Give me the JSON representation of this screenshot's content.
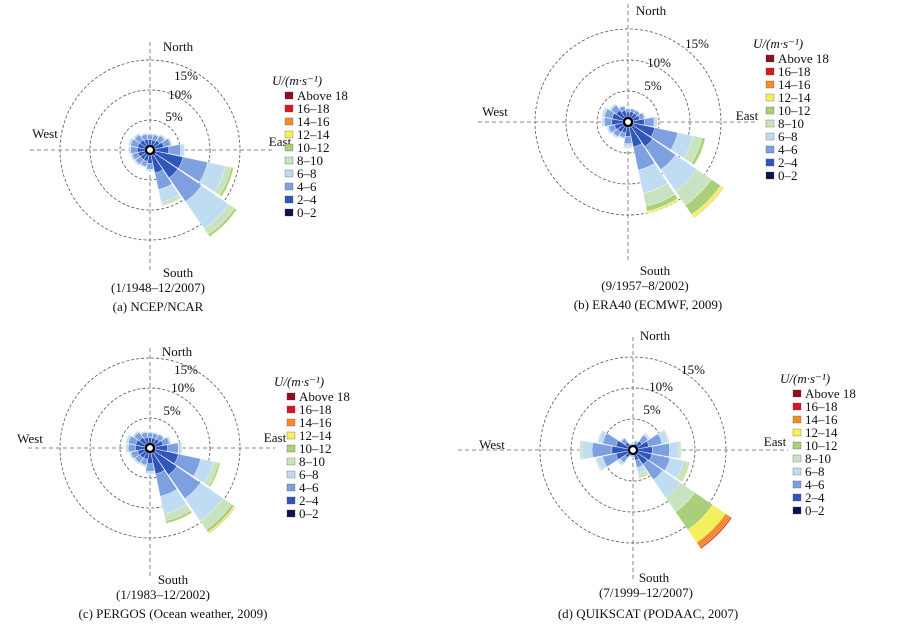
{
  "legend": {
    "title": "U/(m·s⁻¹)",
    "bins": [
      "Above 18",
      "16–18",
      "14–16",
      "12–14",
      "10–12",
      "8–10",
      "6–8",
      "4–6",
      "2–4",
      "0–2"
    ],
    "colors": [
      "#8b0f1c",
      "#d7191c",
      "#f48c2c",
      "#f4ef5c",
      "#a9cf7a",
      "#c8e3c0",
      "#bfdcf2",
      "#7fa0e0",
      "#2f56b8",
      "#0b1250"
    ]
  },
  "directions": {
    "north": "North",
    "south": "South",
    "east": "East",
    "west": "West"
  },
  "ring_labels": [
    "5%",
    "10%",
    "15%"
  ],
  "chart_data": [
    {
      "type": "wind-rose",
      "panel": "a",
      "caption": "(a) NCEP/NCAR",
      "period": "(1/1948–12/2007)",
      "ring_levels_pct": [
        5,
        10,
        15
      ],
      "sectors_deg": [
        0,
        22.5,
        45,
        67.5,
        90,
        112.5,
        135,
        157.5,
        180,
        202.5,
        225,
        247.5,
        270,
        292.5,
        315,
        337.5
      ],
      "speed_bins": [
        "0–2",
        "2–4",
        "4–6",
        "6–8",
        "8–10",
        "10–12",
        "12–14",
        "14–16",
        "16–18",
        "Above 18"
      ],
      "frequencies_pct": [
        [
          0.4,
          1.0,
          0.8,
          0.2,
          0,
          0,
          0,
          0,
          0,
          0
        ],
        [
          0.4,
          1.0,
          0.9,
          0.2,
          0,
          0,
          0,
          0,
          0,
          0
        ],
        [
          0.4,
          1.2,
          1.0,
          0.3,
          0,
          0,
          0,
          0,
          0,
          0
        ],
        [
          0.5,
          1.5,
          1.2,
          0.3,
          0,
          0,
          0,
          0,
          0,
          0
        ],
        [
          0.6,
          2.2,
          2.0,
          0.6,
          0.1,
          0,
          0,
          0,
          0,
          0
        ],
        [
          0.8,
          4.5,
          4.2,
          3.0,
          1.0,
          0.4,
          0.1,
          0,
          0,
          0
        ],
        [
          0.8,
          4.5,
          4.8,
          5.5,
          1.2,
          0.4,
          0.1,
          0,
          0,
          0
        ],
        [
          0.6,
          3.0,
          2.8,
          2.2,
          0.5,
          0.1,
          0,
          0,
          0,
          0
        ],
        [
          0.5,
          1.4,
          1.0,
          0.3,
          0,
          0,
          0,
          0,
          0,
          0
        ],
        [
          0.4,
          1.2,
          0.9,
          0.2,
          0,
          0,
          0,
          0,
          0,
          0
        ],
        [
          0.4,
          1.2,
          1.0,
          0.3,
          0,
          0,
          0,
          0,
          0,
          0
        ],
        [
          0.4,
          1.3,
          1.0,
          0.3,
          0,
          0,
          0,
          0,
          0,
          0
        ],
        [
          0.4,
          1.4,
          1.1,
          0.3,
          0,
          0,
          0,
          0,
          0,
          0
        ],
        [
          0.4,
          1.4,
          1.2,
          0.4,
          0,
          0,
          0,
          0,
          0,
          0
        ],
        [
          0.4,
          1.3,
          1.1,
          0.3,
          0,
          0,
          0,
          0,
          0,
          0
        ],
        [
          0.4,
          1.1,
          0.9,
          0.2,
          0,
          0,
          0,
          0,
          0,
          0
        ]
      ]
    },
    {
      "type": "wind-rose",
      "panel": "b",
      "caption": "(b) ERA40 (ECMWF, 2009)",
      "period": "(9/1957–8/2002)",
      "ring_levels_pct": [
        5,
        10,
        15
      ],
      "sectors_deg": [
        0,
        22.5,
        45,
        67.5,
        90,
        112.5,
        135,
        157.5,
        180,
        202.5,
        225,
        247.5,
        270,
        292.5,
        315,
        337.5
      ],
      "speed_bins": [
        "0–2",
        "2–4",
        "4–6",
        "6–8",
        "8–10",
        "10–12",
        "12–14",
        "14–16",
        "16–18",
        "Above 18"
      ],
      "frequencies_pct": [
        [
          0.4,
          0.9,
          0.5,
          0.1,
          0,
          0,
          0,
          0,
          0,
          0
        ],
        [
          0.4,
          1.0,
          0.5,
          0.1,
          0,
          0,
          0,
          0,
          0,
          0
        ],
        [
          0.4,
          1.0,
          0.6,
          0.1,
          0,
          0,
          0,
          0,
          0,
          0
        ],
        [
          0.4,
          1.2,
          0.8,
          0.2,
          0,
          0,
          0,
          0,
          0,
          0
        ],
        [
          0.5,
          1.8,
          1.6,
          0.5,
          0.1,
          0,
          0,
          0,
          0,
          0
        ],
        [
          0.6,
          3.5,
          3.8,
          2.5,
          1.5,
          0.5,
          0.1,
          0,
          0,
          0
        ],
        [
          0.7,
          3.8,
          4.5,
          4.2,
          2.8,
          1.8,
          0.5,
          0.1,
          0,
          0
        ],
        [
          0.6,
          3.2,
          3.8,
          3.8,
          2.2,
          0.8,
          0.3,
          0,
          0,
          0
        ],
        [
          0.5,
          1.5,
          1.2,
          0.5,
          0.2,
          0,
          0,
          0,
          0,
          0
        ],
        [
          0.4,
          1.1,
          0.8,
          0.2,
          0,
          0,
          0,
          0,
          0,
          0
        ],
        [
          0.4,
          1.3,
          0.9,
          0.3,
          0,
          0,
          0,
          0,
          0,
          0
        ],
        [
          0.4,
          1.5,
          1.0,
          0.3,
          0,
          0,
          0,
          0,
          0,
          0
        ],
        [
          0.5,
          1.8,
          1.2,
          0.4,
          0.1,
          0,
          0,
          0,
          0,
          0
        ],
        [
          0.5,
          1.8,
          1.3,
          0.4,
          0.1,
          0,
          0,
          0,
          0,
          0
        ],
        [
          0.4,
          1.6,
          1.0,
          0.3,
          0,
          0,
          0,
          0,
          0,
          0
        ],
        [
          0.4,
          1.2,
          0.7,
          0.2,
          0,
          0,
          0,
          0,
          0,
          0
        ]
      ]
    },
    {
      "type": "wind-rose",
      "panel": "c",
      "caption": "(c) PERGOS (Ocean weather, 2009)",
      "period": "(1/1983–12/2002)",
      "ring_levels_pct": [
        5,
        10,
        15
      ],
      "sectors_deg": [
        0,
        22.5,
        45,
        67.5,
        90,
        112.5,
        135,
        157.5,
        180,
        202.5,
        225,
        247.5,
        270,
        292.5,
        315,
        337.5
      ],
      "speed_bins": [
        "0–2",
        "2–4",
        "4–6",
        "6–8",
        "8–10",
        "10–12",
        "12–14",
        "14–16",
        "16–18",
        "Above 18"
      ],
      "frequencies_pct": [
        [
          0.4,
          1.0,
          0.8,
          0.2,
          0,
          0,
          0,
          0,
          0,
          0
        ],
        [
          0.4,
          1.0,
          0.8,
          0.2,
          0,
          0,
          0,
          0,
          0,
          0
        ],
        [
          0.4,
          1.1,
          0.9,
          0.2,
          0,
          0,
          0,
          0,
          0,
          0
        ],
        [
          0.5,
          1.4,
          1.1,
          0.3,
          0,
          0,
          0,
          0,
          0,
          0
        ],
        [
          0.6,
          2.0,
          1.8,
          0.6,
          0.1,
          0,
          0,
          0,
          0,
          0
        ],
        [
          0.7,
          3.8,
          3.8,
          2.2,
          0.8,
          0.3,
          0.1,
          0,
          0,
          0
        ],
        [
          0.8,
          4.3,
          4.8,
          4.5,
          1.8,
          0.5,
          0.2,
          0.1,
          0,
          0
        ],
        [
          0.6,
          3.5,
          3.8,
          3.0,
          1.2,
          0.4,
          0.1,
          0,
          0,
          0
        ],
        [
          0.5,
          1.8,
          1.3,
          0.4,
          0.1,
          0,
          0,
          0,
          0,
          0
        ],
        [
          0.4,
          1.2,
          1.0,
          0.3,
          0,
          0,
          0,
          0,
          0,
          0
        ],
        [
          0.4,
          1.3,
          1.0,
          0.3,
          0,
          0,
          0,
          0,
          0,
          0
        ],
        [
          0.4,
          1.4,
          1.1,
          0.3,
          0,
          0,
          0,
          0,
          0,
          0
        ],
        [
          0.5,
          1.6,
          1.2,
          0.4,
          0.1,
          0,
          0,
          0,
          0,
          0
        ],
        [
          0.5,
          1.6,
          1.3,
          0.4,
          0.1,
          0,
          0,
          0,
          0,
          0
        ],
        [
          0.4,
          1.4,
          1.1,
          0.3,
          0,
          0,
          0,
          0,
          0,
          0
        ],
        [
          0.4,
          1.1,
          0.9,
          0.2,
          0,
          0,
          0,
          0,
          0,
          0
        ]
      ]
    },
    {
      "type": "wind-rose",
      "panel": "d",
      "caption": "(d) QUIKSCAT (PODAAC, 2007)",
      "period": "(7/1999–12/2007)",
      "ring_levels_pct": [
        5,
        10,
        15
      ],
      "sectors_deg": [
        0,
        22.5,
        45,
        67.5,
        90,
        112.5,
        135,
        157.5,
        180,
        202.5,
        225,
        247.5,
        270,
        292.5,
        315,
        337.5
      ],
      "speed_bins": [
        "0–2",
        "2–4",
        "4–6",
        "6–8",
        "8–10",
        "10–12",
        "12–14",
        "14–16",
        "16–18",
        "Above 18"
      ],
      "frequencies_pct": [
        [
          0.1,
          0.3,
          0.2,
          0.1,
          0,
          0,
          0,
          0,
          0,
          0
        ],
        [
          0.2,
          0.6,
          0.4,
          0.1,
          0,
          0,
          0,
          0,
          0,
          0
        ],
        [
          0.2,
          1.2,
          1.2,
          0.4,
          0.1,
          0,
          0,
          0,
          0,
          0
        ],
        [
          0.3,
          2.0,
          2.2,
          1.0,
          0.2,
          0,
          0,
          0,
          0,
          0
        ],
        [
          0.3,
          2.5,
          2.8,
          1.5,
          0.3,
          0.1,
          0,
          0,
          0,
          0
        ],
        [
          0.3,
          2.5,
          3.0,
          2.2,
          0.8,
          0.2,
          0.1,
          0,
          0,
          0
        ],
        [
          0.3,
          2.2,
          3.0,
          3.5,
          2.8,
          3.5,
          2.5,
          1.0,
          0.2,
          0
        ],
        [
          0.2,
          1.2,
          1.2,
          1.0,
          0.5,
          0.2,
          0.1,
          0,
          0,
          0
        ],
        [
          0.1,
          0.4,
          0.3,
          0.1,
          0,
          0,
          0,
          0,
          0,
          0
        ],
        [
          0.1,
          0.4,
          0.3,
          0.1,
          0,
          0,
          0,
          0,
          0,
          0
        ],
        [
          0.2,
          1.0,
          1.0,
          0.5,
          0.1,
          0,
          0,
          0,
          0,
          0
        ],
        [
          0.3,
          2.2,
          2.2,
          1.0,
          0.2,
          0,
          0,
          0,
          0,
          0
        ],
        [
          0.3,
          2.8,
          3.2,
          1.6,
          0.3,
          0.1,
          0,
          0,
          0,
          0
        ],
        [
          0.3,
          2.2,
          2.2,
          0.8,
          0.1,
          0,
          0,
          0,
          0,
          0
        ],
        [
          0.2,
          1.0,
          0.8,
          0.2,
          0,
          0,
          0,
          0,
          0,
          0
        ],
        [
          0.1,
          0.4,
          0.3,
          0.1,
          0,
          0,
          0,
          0,
          0,
          0
        ]
      ]
    }
  ]
}
